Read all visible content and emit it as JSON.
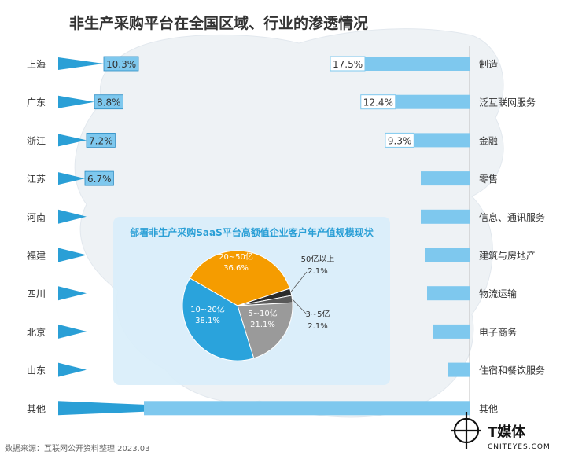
{
  "title": "非生产采购平台在全国区域、行业的渗透情况",
  "source": "数据来源：互联网公开资料整理 2023.03",
  "logo": {
    "name": "T媒体",
    "sub": "CNITEYES.COM"
  },
  "colors": {
    "bar": "#7ec8ee",
    "triangle": "#2a9fd6",
    "text": "#333333",
    "map": "#eef2f5",
    "panel": "#d9eefa"
  },
  "chart_data": [
    {
      "type": "bar",
      "orientation": "horizontal",
      "categories": [
        "上海",
        "广东",
        "浙江",
        "江苏",
        "河南",
        "福建",
        "四川",
        "北京",
        "山东",
        "其他"
      ],
      "values": [
        10.3,
        8.8,
        7.2,
        6.7,
        null,
        null,
        null,
        null,
        null,
        null
      ],
      "value_labels": [
        "10.3%",
        "8.8%",
        "7.2%",
        "6.7%",
        "",
        "",
        "",
        "",
        "",
        ""
      ]
    },
    {
      "type": "bar",
      "orientation": "horizontal",
      "categories": [
        "制造",
        "泛互联网服务",
        "金融",
        "零售",
        "信息、通讯服务",
        "建筑与房地产",
        "物流运输",
        "电子商务",
        "住宿和餐饮服务",
        "其他"
      ],
      "values": [
        17.5,
        12.4,
        9.3,
        null,
        null,
        null,
        null,
        null,
        null,
        null
      ],
      "value_labels": [
        "17.5%",
        "12.4%",
        "9.3%",
        "",
        "",
        "",
        "",
        "",
        "",
        ""
      ]
    },
    {
      "type": "pie",
      "title": "部署非生产采购SaaS平台高额值企业客户年产值规模现状",
      "slices": [
        {
          "label": "20~50亿",
          "value": 36.6,
          "value_label": "36.6%",
          "color": "#f59c00"
        },
        {
          "label": "50亿以上",
          "value": 2.1,
          "value_label": "2.1%",
          "color": "#2b2b2b"
        },
        {
          "label": "3~5亿",
          "value": 2.1,
          "value_label": "2.1%",
          "color": "#595959"
        },
        {
          "label": "5~10亿",
          "value": 21.1,
          "value_label": "21.1%",
          "color": "#9a9a9a"
        },
        {
          "label": "10~20亿",
          "value": 38.1,
          "value_label": "38.1%",
          "color": "#2aa3dc"
        }
      ]
    }
  ]
}
